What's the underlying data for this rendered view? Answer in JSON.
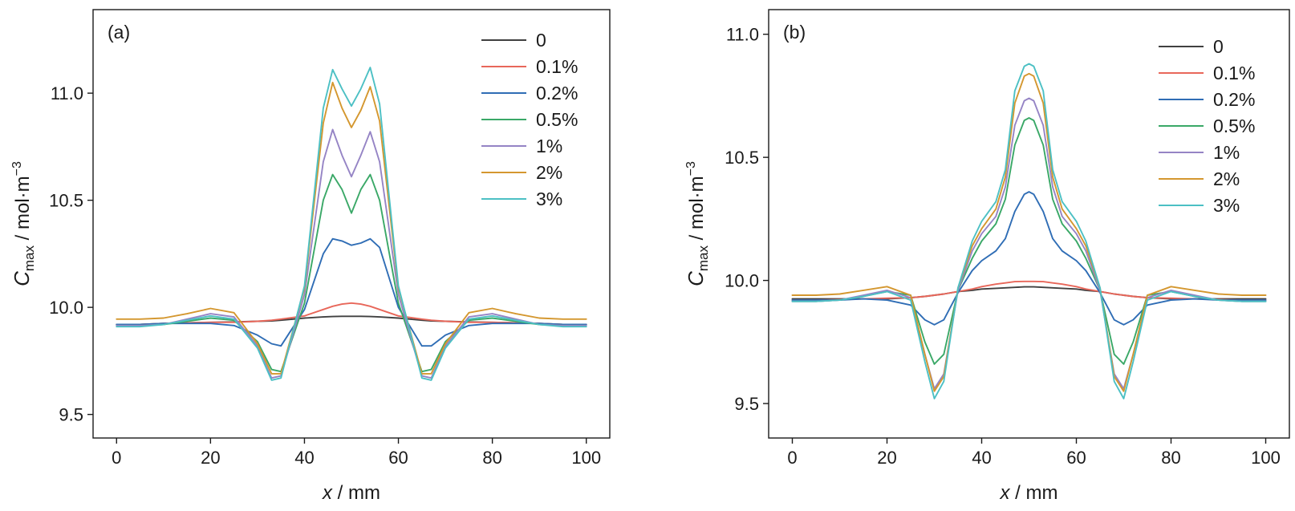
{
  "chart_data": [
    {
      "type": "line",
      "panel_label": "(a)",
      "xlabel": {
        "italic": "x",
        "rest": " / mm"
      },
      "ylabel": {
        "base": "C",
        "sub": "max",
        "unit": " / mol·m",
        "sup": "−3"
      },
      "xlim": [
        -5,
        105
      ],
      "ylim": [
        9.39,
        11.39
      ],
      "xticks": [
        0,
        20,
        40,
        60,
        80,
        100
      ],
      "xtick_labels": [
        "0",
        "20",
        "40",
        "60",
        "80",
        "100"
      ],
      "yticks": [
        9.5,
        10.0,
        10.5,
        11.0
      ],
      "ytick_labels": [
        "9.5",
        "10.0",
        "10.5",
        "11.0"
      ],
      "legend_position": "top-right",
      "grid": false,
      "x": [
        0,
        5,
        10,
        15,
        20,
        25,
        30,
        33,
        35,
        40,
        44,
        46,
        48,
        50,
        52,
        54,
        56,
        60,
        65,
        67,
        70,
        75,
        80,
        85,
        90,
        95,
        100
      ],
      "series": [
        {
          "name": "0",
          "color": "#404040",
          "values": [
            9.92,
            9.92,
            9.925,
            9.928,
            9.93,
            9.932,
            9.935,
            9.937,
            9.94,
            9.95,
            9.955,
            9.957,
            9.958,
            9.958,
            9.958,
            9.957,
            9.955,
            9.95,
            9.94,
            9.937,
            9.935,
            9.932,
            9.93,
            9.928,
            9.925,
            9.92,
            9.92
          ]
        },
        {
          "name": "0.1%",
          "color": "#e8675a",
          "values": [
            9.92,
            9.92,
            9.925,
            9.928,
            9.93,
            9.93,
            9.935,
            9.94,
            9.945,
            9.96,
            9.99,
            10.005,
            10.015,
            10.02,
            10.015,
            10.005,
            9.99,
            9.96,
            9.945,
            9.94,
            9.935,
            9.93,
            9.93,
            9.928,
            9.925,
            9.92,
            9.92
          ]
        },
        {
          "name": "0.2%",
          "color": "#2f6db5",
          "values": [
            9.92,
            9.92,
            9.925,
            9.925,
            9.925,
            9.915,
            9.87,
            9.83,
            9.82,
            9.99,
            10.25,
            10.32,
            10.31,
            10.29,
            10.3,
            10.32,
            10.28,
            10.0,
            9.82,
            9.82,
            9.87,
            9.915,
            9.925,
            9.925,
            9.925,
            9.92,
            9.92
          ]
        },
        {
          "name": "0.5%",
          "color": "#3aa867",
          "values": [
            9.915,
            9.915,
            9.92,
            9.935,
            9.95,
            9.94,
            9.84,
            9.71,
            9.7,
            10.02,
            10.5,
            10.62,
            10.55,
            10.44,
            10.55,
            10.62,
            10.5,
            10.02,
            9.7,
            9.71,
            9.84,
            9.94,
            9.95,
            9.935,
            9.92,
            9.915,
            9.915
          ]
        },
        {
          "name": "1%",
          "color": "#9584c5",
          "values": [
            9.915,
            9.915,
            9.92,
            9.945,
            9.97,
            9.955,
            9.82,
            9.67,
            9.68,
            10.06,
            10.68,
            10.83,
            10.71,
            10.61,
            10.71,
            10.82,
            10.68,
            10.06,
            9.68,
            9.67,
            9.82,
            9.955,
            9.97,
            9.945,
            9.92,
            9.915,
            9.915
          ]
        },
        {
          "name": "2%",
          "color": "#d4972f",
          "values": [
            9.945,
            9.945,
            9.95,
            9.97,
            9.995,
            9.975,
            9.83,
            9.69,
            9.69,
            10.09,
            10.86,
            11.05,
            10.93,
            10.84,
            10.92,
            11.03,
            10.87,
            10.09,
            9.69,
            9.69,
            9.83,
            9.975,
            9.995,
            9.97,
            9.95,
            9.945,
            9.945
          ]
        },
        {
          "name": "3%",
          "color": "#4cc0c4",
          "values": [
            9.91,
            9.91,
            9.92,
            9.94,
            9.96,
            9.945,
            9.81,
            9.66,
            9.67,
            10.1,
            10.93,
            11.11,
            11.02,
            10.94,
            11.02,
            11.12,
            10.95,
            10.1,
            9.67,
            9.66,
            9.81,
            9.945,
            9.96,
            9.94,
            9.92,
            9.91,
            9.91
          ]
        }
      ]
    },
    {
      "type": "line",
      "panel_label": "(b)",
      "xlabel": {
        "italic": "x",
        "rest": " / mm"
      },
      "ylabel": {
        "base": "C",
        "sub": "max",
        "unit": " / mol·m",
        "sup": "−3"
      },
      "xlim": [
        -5,
        105
      ],
      "ylim": [
        9.36,
        11.1
      ],
      "xticks": [
        0,
        20,
        40,
        60,
        80,
        100
      ],
      "xtick_labels": [
        "0",
        "20",
        "40",
        "60",
        "80",
        "100"
      ],
      "yticks": [
        9.5,
        10.0,
        10.5,
        11.0
      ],
      "ytick_labels": [
        "9.5",
        "10.0",
        "10.5",
        "11.0"
      ],
      "legend_position": "top-right",
      "grid": false,
      "x": [
        0,
        5,
        10,
        15,
        20,
        25,
        28,
        30,
        32,
        35,
        38,
        40,
        43,
        45,
        47,
        49,
        50,
        51,
        53,
        55,
        57,
        60,
        62,
        65,
        68,
        70,
        72,
        75,
        80,
        85,
        90,
        95,
        100
      ],
      "series": [
        {
          "name": "0",
          "color": "#404040",
          "values": [
            9.925,
            9.925,
            9.925,
            9.925,
            9.925,
            9.93,
            9.935,
            9.94,
            9.945,
            9.955,
            9.96,
            9.965,
            9.968,
            9.97,
            9.972,
            9.974,
            9.974,
            9.974,
            9.972,
            9.97,
            9.968,
            9.965,
            9.96,
            9.955,
            9.945,
            9.94,
            9.935,
            9.93,
            9.925,
            9.925,
            9.925,
            9.925,
            9.925
          ]
        },
        {
          "name": "0.1%",
          "color": "#e8675a",
          "values": [
            9.92,
            9.92,
            9.922,
            9.925,
            9.928,
            9.93,
            9.935,
            9.94,
            9.945,
            9.955,
            9.965,
            9.975,
            9.985,
            9.99,
            9.995,
            9.996,
            9.996,
            9.996,
            9.995,
            9.99,
            9.985,
            9.975,
            9.965,
            9.955,
            9.945,
            9.94,
            9.935,
            9.93,
            9.928,
            9.925,
            9.922,
            9.92,
            9.92
          ]
        },
        {
          "name": "0.2%",
          "color": "#2f6db5",
          "values": [
            9.92,
            9.92,
            9.92,
            9.925,
            9.92,
            9.9,
            9.84,
            9.82,
            9.84,
            9.95,
            10.04,
            10.08,
            10.12,
            10.17,
            10.28,
            10.35,
            10.36,
            10.35,
            10.28,
            10.17,
            10.12,
            10.08,
            10.04,
            9.95,
            9.84,
            9.82,
            9.84,
            9.9,
            9.92,
            9.925,
            9.92,
            9.92,
            9.92
          ]
        },
        {
          "name": "0.5%",
          "color": "#3aa867",
          "values": [
            9.915,
            9.915,
            9.92,
            9.935,
            9.955,
            9.94,
            9.75,
            9.66,
            9.7,
            9.96,
            10.09,
            10.16,
            10.23,
            10.33,
            10.55,
            10.65,
            10.66,
            10.65,
            10.55,
            10.33,
            10.23,
            10.16,
            10.09,
            9.96,
            9.7,
            9.66,
            9.75,
            9.94,
            9.955,
            9.935,
            9.92,
            9.915,
            9.915
          ]
        },
        {
          "name": "1%",
          "color": "#9584c5",
          "values": [
            9.915,
            9.915,
            9.92,
            9.94,
            9.96,
            9.93,
            9.7,
            9.56,
            9.62,
            9.96,
            10.12,
            10.19,
            10.26,
            10.38,
            10.63,
            10.73,
            10.74,
            10.73,
            10.63,
            10.38,
            10.26,
            10.19,
            10.12,
            9.96,
            9.62,
            9.56,
            9.7,
            9.93,
            9.96,
            9.94,
            9.92,
            9.915,
            9.915
          ]
        },
        {
          "name": "2%",
          "color": "#d4972f",
          "values": [
            9.94,
            9.94,
            9.945,
            9.96,
            9.975,
            9.94,
            9.7,
            9.55,
            9.61,
            9.97,
            10.14,
            10.21,
            10.29,
            10.42,
            10.72,
            10.83,
            10.84,
            10.83,
            10.72,
            10.42,
            10.29,
            10.21,
            10.14,
            9.97,
            9.61,
            9.55,
            9.7,
            9.94,
            9.975,
            9.96,
            9.945,
            9.94,
            9.94
          ]
        },
        {
          "name": "3%",
          "color": "#4cc0c4",
          "values": [
            9.915,
            9.915,
            9.92,
            9.935,
            9.955,
            9.92,
            9.67,
            9.52,
            9.59,
            9.97,
            10.16,
            10.24,
            10.32,
            10.45,
            10.77,
            10.87,
            10.88,
            10.87,
            10.77,
            10.45,
            10.32,
            10.24,
            10.16,
            9.97,
            9.59,
            9.52,
            9.67,
            9.92,
            9.955,
            9.935,
            9.92,
            9.915,
            9.915
          ]
        }
      ]
    }
  ]
}
